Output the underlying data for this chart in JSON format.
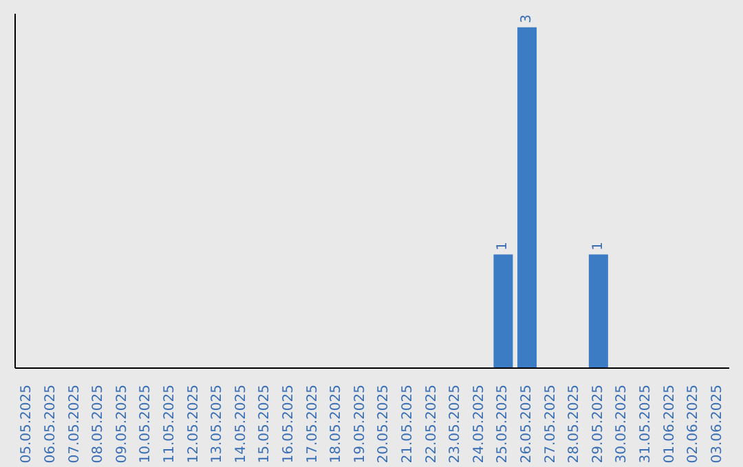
{
  "chart_data": {
    "type": "bar",
    "categories": [
      "05.05.2025",
      "06.05.2025",
      "07.05.2025",
      "08.05.2025",
      "09.05.2025",
      "10.05.2025",
      "11.05.2025",
      "12.05.2025",
      "13.05.2025",
      "14.05.2025",
      "15.05.2025",
      "16.05.2025",
      "17.05.2025",
      "18.05.2025",
      "19.05.2025",
      "20.05.2025",
      "21.05.2025",
      "22.05.2025",
      "23.05.2025",
      "24.05.2025",
      "25.05.2025",
      "26.05.2025",
      "27.05.2025",
      "28.05.2025",
      "29.05.2025",
      "30.05.2025",
      "31.05.2025",
      "01.06.2025",
      "02.06.2025",
      "03.06.2025"
    ],
    "values": [
      null,
      null,
      null,
      null,
      null,
      null,
      null,
      null,
      null,
      null,
      null,
      null,
      null,
      null,
      null,
      null,
      null,
      null,
      null,
      null,
      1,
      3,
      null,
      null,
      1,
      null,
      null,
      null,
      null,
      null
    ],
    "color": "#3b7cc4",
    "data_labels": true,
    "tick_labels": "x",
    "grid": false
  }
}
